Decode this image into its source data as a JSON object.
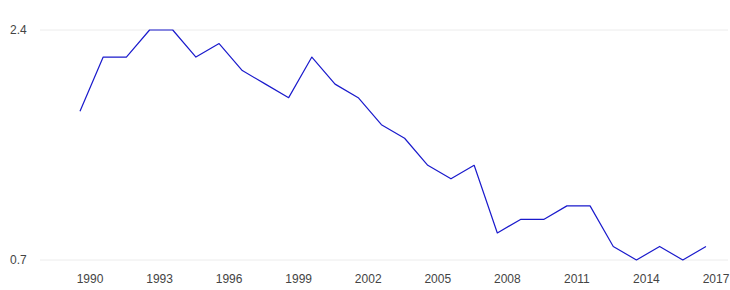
{
  "chart_data": {
    "type": "line",
    "x": [
      1990,
      1991,
      1992,
      1993,
      1994,
      1995,
      1996,
      1997,
      1998,
      1999,
      2000,
      2001,
      2002,
      2003,
      2004,
      2005,
      2006,
      2007,
      2008,
      2009,
      2010,
      2011,
      2012,
      2013,
      2014,
      2015,
      2016,
      2017
    ],
    "values": [
      1.8,
      2.2,
      2.2,
      2.4,
      2.4,
      2.2,
      2.3,
      2.1,
      2.0,
      1.9,
      2.2,
      2.0,
      1.9,
      1.7,
      1.6,
      1.4,
      1.3,
      1.4,
      0.9,
      1.0,
      1.0,
      1.1,
      1.1,
      0.8,
      0.7,
      0.8,
      0.7,
      0.8
    ],
    "color": "#1a1acc",
    "xlim": [
      1990,
      2017
    ],
    "xticks": [
      1990,
      1993,
      1996,
      1999,
      2002,
      2005,
      2008,
      2011,
      2014,
      2017
    ],
    "ylim": [
      0.7,
      2.4
    ],
    "yticks": [
      0.7,
      2.4
    ],
    "grid": true
  }
}
